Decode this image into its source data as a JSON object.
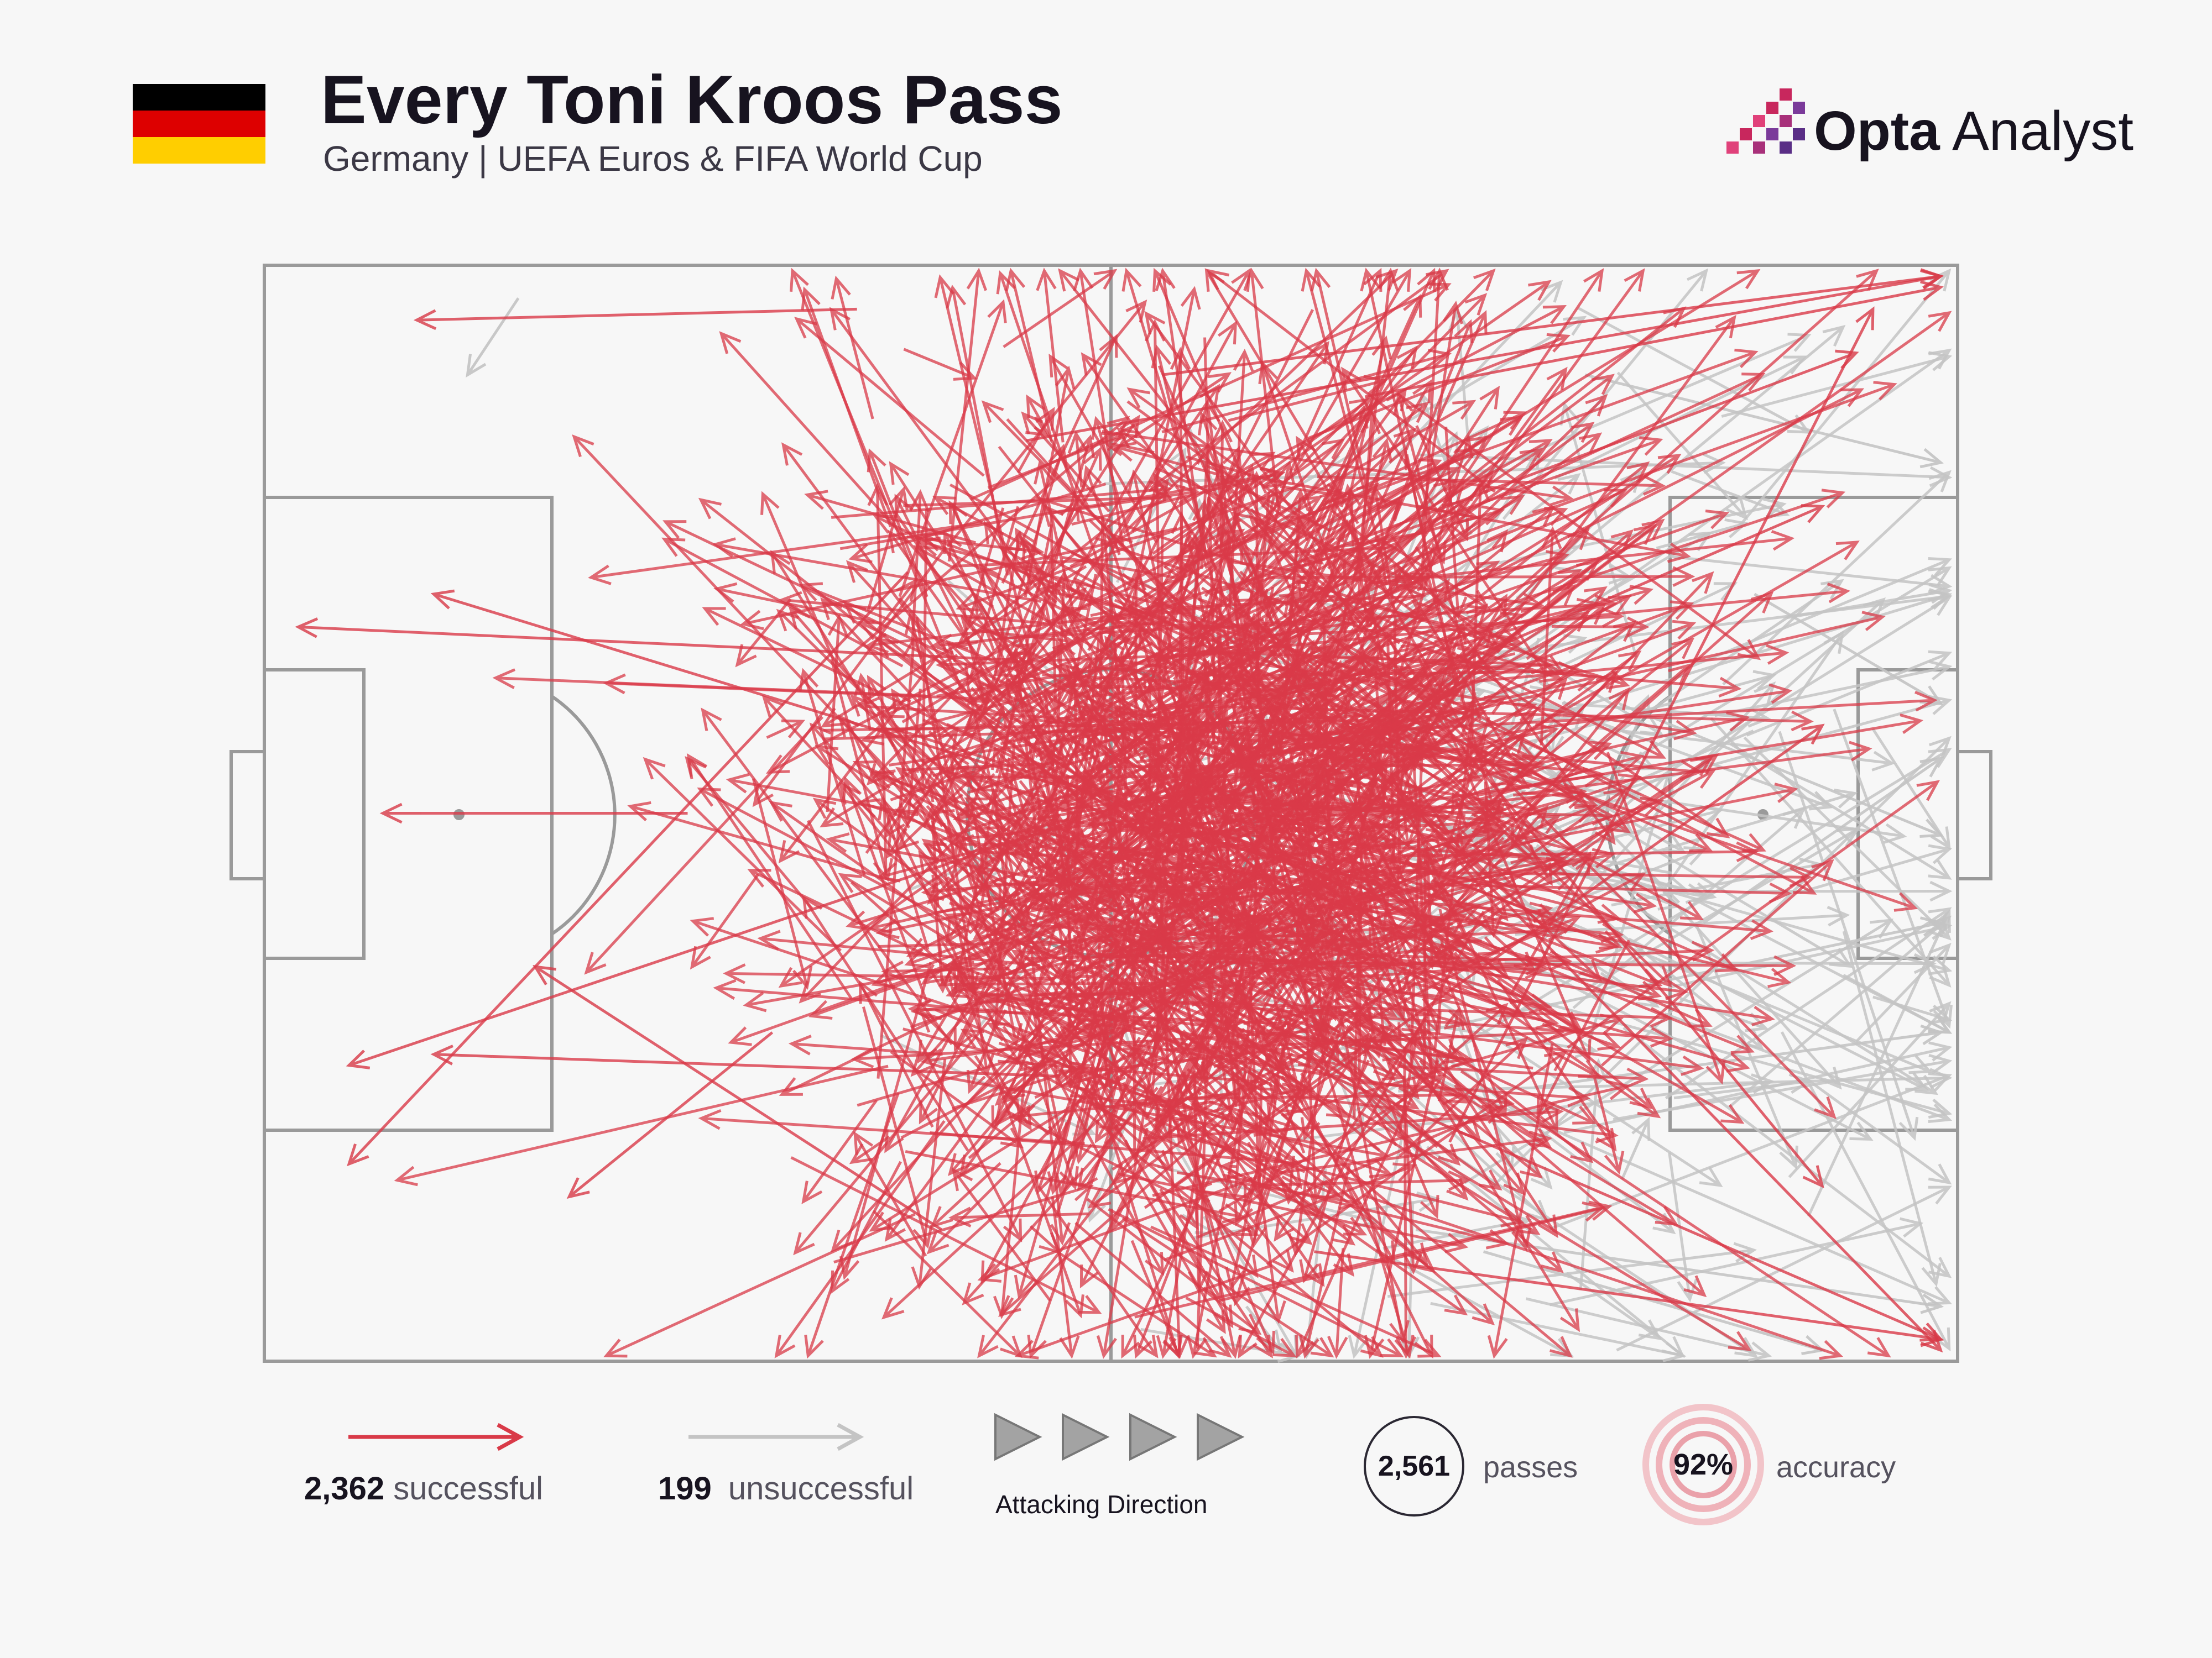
{
  "header": {
    "title": "Every Toni Kroos Pass",
    "subtitle": "Germany | UEFA Euros & FIFA World Cup",
    "flag_colors": [
      "#000000",
      "#dd0000",
      "#ffce00"
    ],
    "brand_strong": "Opta",
    "brand_light": " Analyst"
  },
  "colors": {
    "successful": "#d93a48",
    "unsuccessful": "#c4c4c4",
    "pitch_lines": "#9a9a9a",
    "background": "#f7f7f7"
  },
  "legend": {
    "successful_count": "2,362",
    "successful_label": "successful",
    "unsuccessful_count": "199",
    "unsuccessful_label": "unsuccessful",
    "direction_label": "Attacking Direction",
    "passes_count": "2,561",
    "passes_label": "passes",
    "accuracy_value": "92%",
    "accuracy_label": "accuracy"
  },
  "chart_data": {
    "type": "scatter",
    "title": "Every Toni Kroos Pass",
    "subtitle": "Germany | UEFA Euros & FIFA World Cup",
    "pitch": "full pitch, attacking left to right",
    "series": [
      {
        "name": "successful",
        "count": 2362
      },
      {
        "name": "unsuccessful",
        "count": 199
      }
    ],
    "total_passes": 2561,
    "accuracy_pct": 92,
    "sample_successful_passes": [
      [
        48,
        48,
        10,
        30
      ],
      [
        53,
        10,
        99,
        1
      ],
      [
        45,
        16,
        99,
        1
      ],
      [
        35,
        4,
        9,
        5
      ],
      [
        60,
        37,
        99,
        99
      ],
      [
        55,
        47,
        5,
        73
      ],
      [
        50,
        50,
        92,
        22
      ],
      [
        42,
        60,
        99,
        98
      ],
      [
        25,
        50,
        7,
        50
      ],
      [
        58,
        20,
        92,
        84
      ],
      [
        30,
        70,
        18,
        85
      ],
      [
        70,
        80,
        95,
        4
      ],
      [
        47,
        74,
        10,
        72
      ],
      [
        52,
        86,
        92,
        42
      ],
      [
        38,
        28,
        5,
        82
      ],
      [
        62,
        90,
        99,
        98
      ],
      [
        44,
        36,
        2,
        33
      ],
      [
        56,
        30,
        94,
        8
      ],
      [
        65,
        12,
        99,
        2
      ],
      [
        40,
        88,
        16,
        64
      ]
    ],
    "sample_unsuccessful_passes": [
      [
        62,
        72,
        99,
        60
      ],
      [
        75,
        75,
        99,
        70
      ],
      [
        80,
        40,
        99,
        52
      ],
      [
        68,
        88,
        99,
        95
      ],
      [
        78,
        10,
        99,
        18
      ],
      [
        85,
        60,
        99,
        45
      ],
      [
        72,
        90,
        92,
        99
      ],
      [
        58,
        95,
        60,
        99
      ],
      [
        88,
        30,
        99,
        40
      ],
      [
        15,
        3,
        12,
        10
      ]
    ],
    "pass_format": "[start_x, start_y, end_x, end_y] on a 0-100 pitch scale, x toward attacking goal",
    "grid": false
  }
}
